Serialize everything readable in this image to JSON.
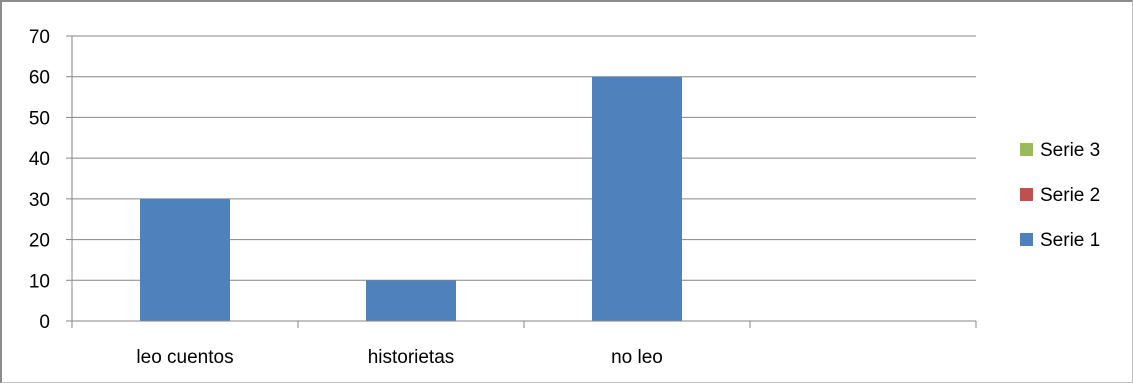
{
  "chart_data": {
    "type": "bar",
    "categories": [
      "leo cuentos",
      "historietas",
      "no leo",
      ""
    ],
    "series": [
      {
        "name": "Serie 1",
        "values": [
          30,
          10,
          60,
          null
        ],
        "color": "#4f81bd"
      },
      {
        "name": "Serie 2",
        "values": [
          null,
          null,
          null,
          null
        ],
        "color": "#c0504d"
      },
      {
        "name": "Serie 3",
        "values": [
          null,
          null,
          null,
          null
        ],
        "color": "#9bbb59"
      }
    ],
    "ylim": [
      0,
      70
    ],
    "yticks": [
      0,
      10,
      20,
      30,
      40,
      50,
      60,
      70
    ],
    "grid": true,
    "legend": "right",
    "legend_order": [
      "Serie 3",
      "Serie 2",
      "Serie 1"
    ]
  }
}
